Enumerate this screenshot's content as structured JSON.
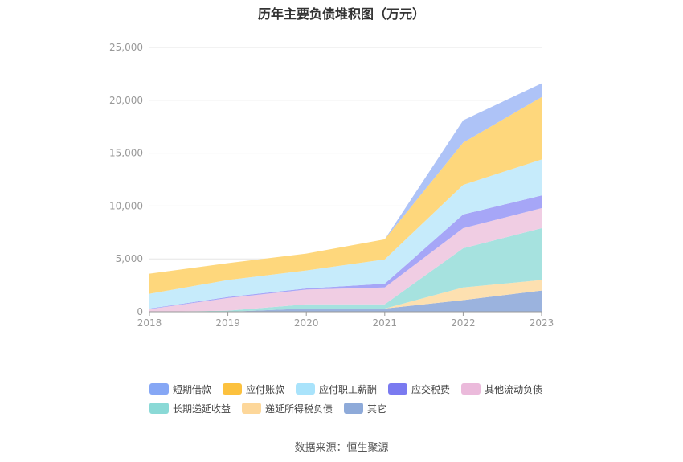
{
  "title": "历年主要负债堆积图（万元）",
  "source": "数据来源：恒生聚源",
  "chart_data": {
    "type": "area",
    "stacked": true,
    "x": [
      "2018",
      "2019",
      "2020",
      "2021",
      "2022",
      "2023"
    ],
    "ylim": [
      0,
      25000
    ],
    "yticks": [
      "0",
      "5,000",
      "10,000",
      "15,000",
      "20,000",
      "25,000"
    ],
    "ytick_values": [
      0,
      5000,
      10000,
      15000,
      20000,
      25000
    ],
    "grid": true,
    "legend_position": "bottom",
    "series": [
      {
        "name": "其它",
        "color": "#9bb3de",
        "values": [
          0,
          0,
          300,
          300,
          1100,
          2000
        ]
      },
      {
        "name": "递延所得税负债",
        "color": "#fde0b0",
        "values": [
          0,
          0,
          0,
          0,
          1200,
          1000
        ]
      },
      {
        "name": "长期递延收益",
        "color": "#a6e2df",
        "values": [
          0,
          100,
          400,
          400,
          3700,
          4900
        ]
      },
      {
        "name": "其他流动负债",
        "color": "#f0cde3",
        "values": [
          250,
          1200,
          1400,
          1600,
          1900,
          1900
        ]
      },
      {
        "name": "应交税费",
        "color": "#a6a6f7",
        "values": [
          50,
          100,
          100,
          350,
          1300,
          1200
        ]
      },
      {
        "name": "应付职工薪酬",
        "color": "#c6ebfb",
        "values": [
          1400,
          1600,
          1700,
          2300,
          2800,
          3400
        ]
      },
      {
        "name": "应付账款",
        "color": "#fed77c",
        "values": [
          1900,
          1600,
          1600,
          1900,
          4000,
          5900
        ]
      },
      {
        "name": "短期借款",
        "color": "#aec3f7",
        "values": [
          0,
          0,
          0,
          0,
          2100,
          1300
        ]
      }
    ]
  },
  "legend": [
    {
      "name": "短期借款",
      "color": "#86a7f5"
    },
    {
      "name": "应付账款",
      "color": "#fcc13e"
    },
    {
      "name": "应付职工薪酬",
      "color": "#a9e3fb"
    },
    {
      "name": "应交税费",
      "color": "#7a7af0"
    },
    {
      "name": "其他流动负债",
      "color": "#ebbadb"
    },
    {
      "name": "长期递延收益",
      "color": "#8ad9d6"
    },
    {
      "name": "递延所得税负债",
      "color": "#fdd79a"
    },
    {
      "name": "其它",
      "color": "#8eaad9"
    }
  ]
}
